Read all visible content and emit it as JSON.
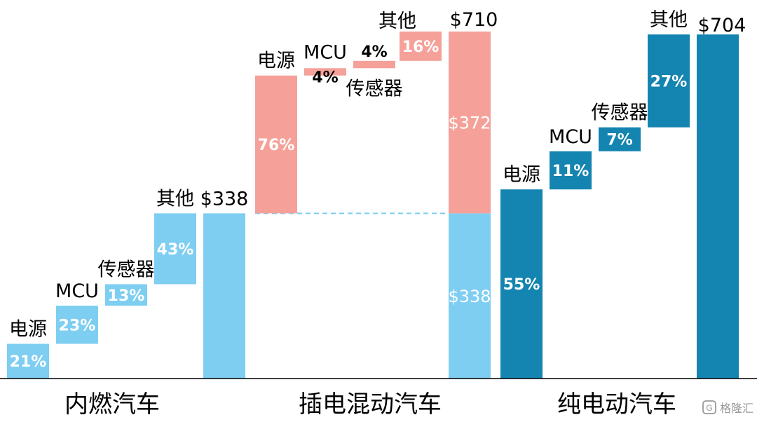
{
  "chart_data": {
    "type": "bar",
    "subtype": "waterfall",
    "colors": {
      "ice": "#7ecef2",
      "phev": "#f5a19a",
      "ev": "#1484b0",
      "connector": "#7ecef2",
      "white_text": "#ffffff",
      "dark_text": "#000000"
    },
    "currency_symbol": "$",
    "groups": [
      {
        "label": "内燃汽车",
        "base": 0,
        "components": [
          {
            "name": "电源",
            "pct": "21%",
            "value": 71
          },
          {
            "name": "MCU",
            "pct": "23%",
            "value": 78
          },
          {
            "name": "传感器",
            "pct": "13%",
            "value": 44
          },
          {
            "name": "其他",
            "pct": "43%",
            "value": 145
          }
        ],
        "total": 338,
        "total_label": "$338"
      },
      {
        "label": "插电混动汽车",
        "base": 338,
        "components": [
          {
            "name": "电源",
            "pct": "76%",
            "value": 282
          },
          {
            "name": "MCU",
            "pct": "4%",
            "value": 15
          },
          {
            "name": "传感器",
            "pct": "4%",
            "value": 15
          },
          {
            "name": "其他",
            "pct": "16%",
            "value": 60
          }
        ],
        "total": 710,
        "total_label": "$710",
        "stack": [
          {
            "value": 338,
            "label": "$338"
          },
          {
            "value": 372,
            "label": "$372"
          }
        ]
      },
      {
        "label": "纯电动汽车",
        "base": 0,
        "components": [
          {
            "name": "电源",
            "pct": "55%",
            "value": 387
          },
          {
            "name": "MCU",
            "pct": "11%",
            "value": 78
          },
          {
            "name": "传感器",
            "pct": "7%",
            "value": 49
          },
          {
            "name": "其他",
            "pct": "27%",
            "value": 190
          }
        ],
        "total": 704,
        "total_label": "$704"
      }
    ],
    "ylim": [
      0,
      740
    ],
    "grid": false,
    "legend": "none"
  },
  "watermark": {
    "icon": "gelonghui-logo-icon",
    "text": "格隆汇"
  }
}
